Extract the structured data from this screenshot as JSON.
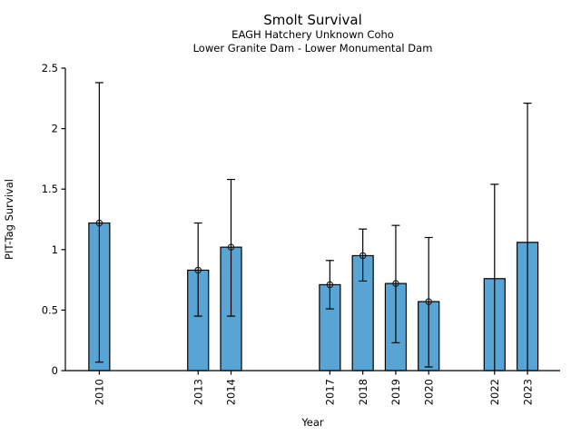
{
  "page": {
    "title": "Smolt Survival",
    "subtitle_line1": "EAGH Hatchery Unknown Coho",
    "subtitle_line2": "Lower Granite Dam - Lower Monumental Dam"
  },
  "chart_data": {
    "type": "bar",
    "title": "Smolt Survival",
    "subtitles": [
      "EAGH Hatchery Unknown Coho",
      "Lower Granite Dam - Lower Monumental Dam"
    ],
    "xlabel": "Year",
    "ylabel": "PIT-Tag Survival",
    "ylim": [
      0,
      2.5
    ],
    "yticks": [
      0,
      0.5,
      1,
      1.5,
      2,
      2.5
    ],
    "ytick_labels": [
      "0",
      "0.5",
      "1",
      "1.5",
      "2",
      "2.5"
    ],
    "xlim": [
      2008.97,
      2023.99
    ],
    "grid": false,
    "legend": "none",
    "bar_color": "#58a5d5",
    "bar_edge_color": "#000000",
    "errorbar_color": "#000000",
    "marker_style": "open-circle",
    "categories": [
      2010,
      2013,
      2014,
      2017,
      2018,
      2019,
      2020,
      2022,
      2023
    ],
    "series": [
      {
        "name": "PIT-Tag Survival",
        "values": [
          1.22,
          0.83,
          1.02,
          0.71,
          0.95,
          0.72,
          0.57,
          0.76,
          1.06
        ],
        "error_low": [
          0.07,
          0.45,
          0.45,
          0.51,
          0.74,
          0.23,
          0.03,
          0.0,
          0.0
        ],
        "error_high": [
          2.38,
          1.22,
          1.58,
          0.91,
          1.17,
          1.2,
          1.1,
          1.54,
          2.21
        ],
        "point_marker": [
          true,
          true,
          true,
          true,
          true,
          true,
          true,
          false,
          false
        ]
      }
    ]
  }
}
